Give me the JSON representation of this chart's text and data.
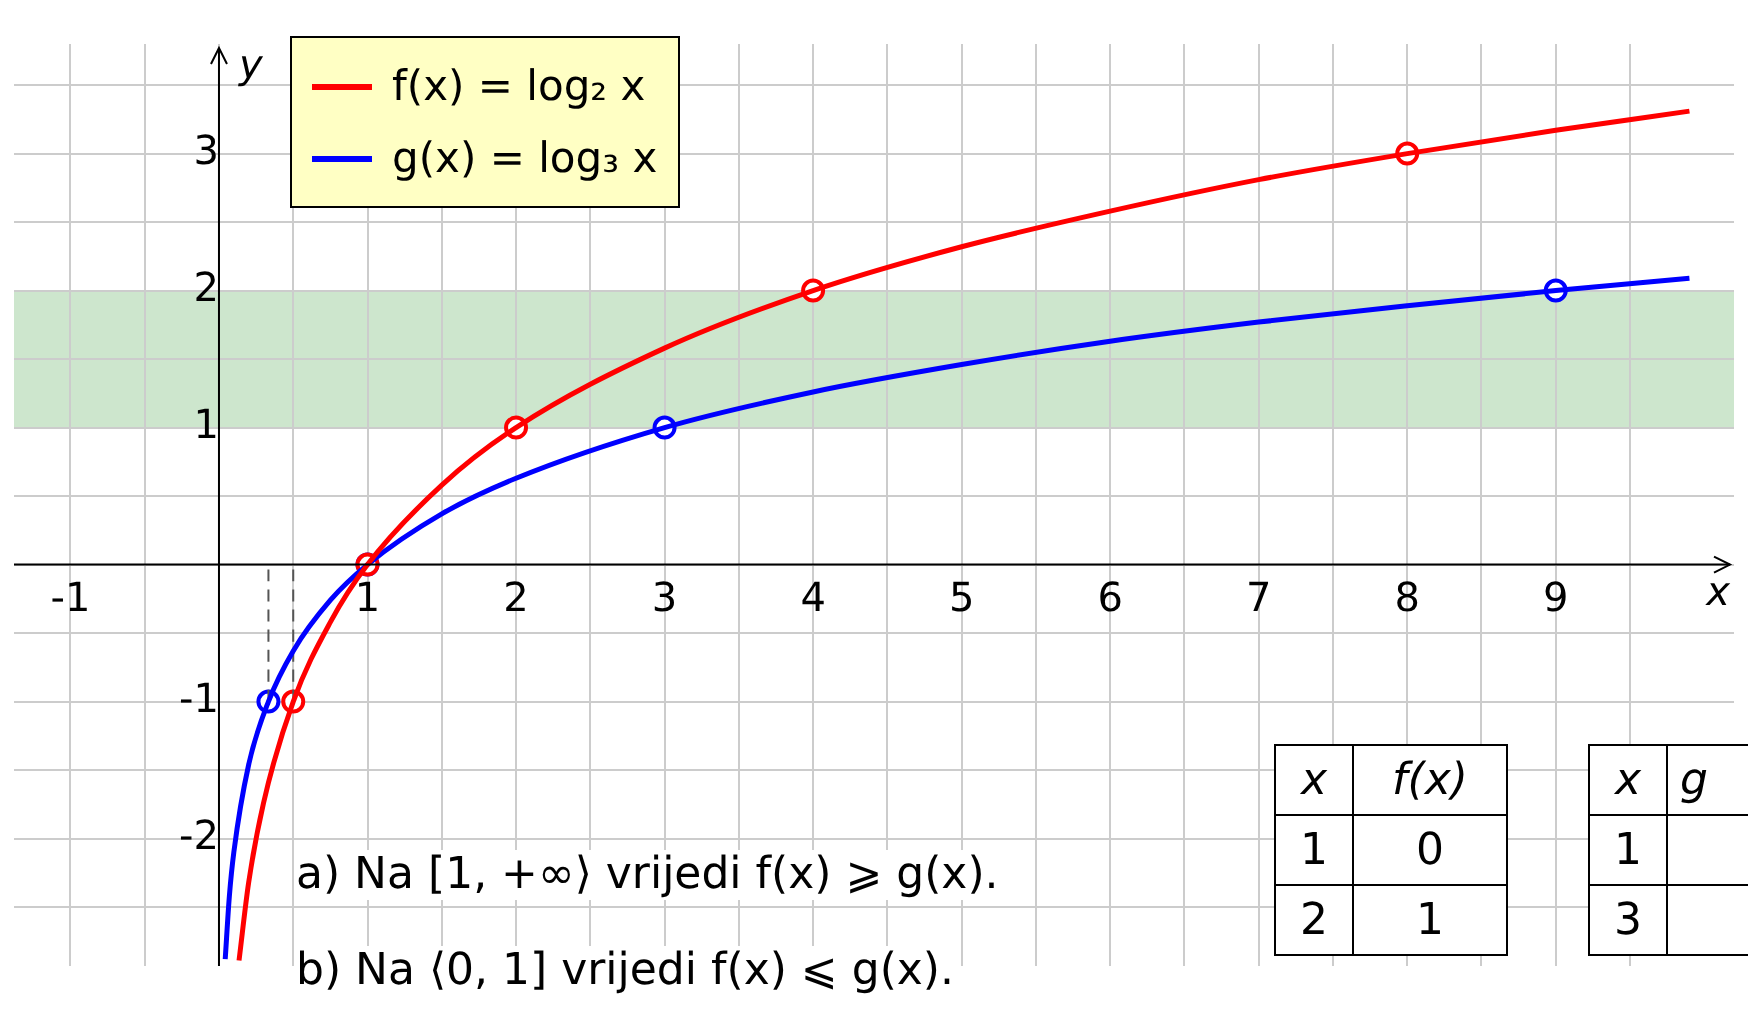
{
  "chart_data": {
    "type": "line",
    "xlabel": "x",
    "ylabel": "y",
    "xlim": [
      -1.38,
      10.2
    ],
    "ylim": [
      -2.93,
      3.8
    ],
    "xticks": [
      -1,
      {
        "value": -0.5,
        "label": null
      },
      {
        "value": 0,
        "label": null
      },
      {
        "value": 0.5,
        "label": null
      },
      1,
      {
        "value": 1.5,
        "label": null
      },
      2,
      {
        "value": 2.5,
        "label": null
      },
      3,
      {
        "value": 3.5,
        "label": null
      },
      4,
      {
        "value": 4.5,
        "label": null
      },
      5,
      {
        "value": 5.5,
        "label": null
      },
      6,
      {
        "value": 6.5,
        "label": null
      },
      7,
      {
        "value": 7.5,
        "label": null
      },
      8,
      {
        "value": 8.5,
        "label": null
      },
      9,
      {
        "value": 9.5,
        "label": null
      }
    ],
    "yticks": [
      {
        "value": -2.5,
        "label": null
      },
      -2,
      {
        "value": -1.5,
        "label": null
      },
      -1,
      {
        "value": -0.5,
        "label": null
      },
      {
        "value": 0,
        "label": null
      },
      {
        "value": 0.5,
        "label": null
      },
      1,
      {
        "value": 1.5,
        "label": null
      },
      2,
      {
        "value": 2.5,
        "label": null
      },
      3,
      {
        "value": 3.5,
        "label": null
      }
    ],
    "grid": true,
    "legend": "top left",
    "bands": [
      {
        "axis": "y",
        "from": 1,
        "to": 2,
        "color": "#cde6cd"
      }
    ],
    "series": [
      {
        "name": "f(x) = log₂ x",
        "color": "#ff0000",
        "type": "line",
        "marker": "none",
        "x": [
          0.135,
          0.2,
          0.3,
          0.5,
          0.75,
          1,
          1.5,
          2,
          3,
          4,
          5,
          6,
          7,
          8,
          9,
          9.9
        ],
        "values": [
          -2.89,
          -2.32,
          -1.74,
          -1,
          -0.42,
          0,
          0.58,
          1,
          1.58,
          2,
          2.32,
          2.58,
          2.81,
          3,
          3.17,
          3.31
        ]
      },
      {
        "name": "g(x) = log₃ x",
        "color": "#0000ff",
        "type": "line",
        "marker": "none",
        "x": [
          0.042,
          0.07,
          0.1,
          0.2,
          0.333,
          0.5,
          0.75,
          1,
          1.5,
          2,
          3,
          4,
          5,
          6,
          7,
          8,
          9,
          9.9
        ],
        "values": [
          -2.88,
          -2.42,
          -2.1,
          -1.46,
          -1,
          -0.63,
          -0.26,
          0,
          0.37,
          0.63,
          1,
          1.26,
          1.46,
          1.63,
          1.77,
          1.89,
          2,
          2.09
        ]
      },
      {
        "color": "#555555",
        "type": "line",
        "line_style": "dashed",
        "marker": "none",
        "x": [
          0.333,
          0.333
        ],
        "values": [
          -1,
          0
        ]
      },
      {
        "color": "#555555",
        "type": "line",
        "line_style": "dashed",
        "marker": "none",
        "x": [
          0.5,
          0.5
        ],
        "values": [
          -1,
          0
        ]
      },
      {
        "color": "#ff0000",
        "type": "scatter",
        "marker": "circle",
        "x": [
          0.5,
          1,
          2,
          4,
          8
        ],
        "values": [
          -1,
          0,
          1,
          2,
          3
        ]
      },
      {
        "color": "#0000ff",
        "type": "scatter",
        "marker": "circle",
        "x": [
          0.333,
          1,
          3,
          9
        ],
        "values": [
          -1,
          0,
          1,
          2
        ]
      }
    ],
    "annotations": [
      "a)  Na [1, +∞⟩ vrijedi f(x) ⩾ g(x).",
      "b)  Na ⟨0, 1] vrijedi f(x) ⩽ g(x).",
      "x",
      "f(x)",
      "1",
      "0",
      "2",
      "1",
      "x",
      "g",
      "1",
      "3"
    ]
  }
}
